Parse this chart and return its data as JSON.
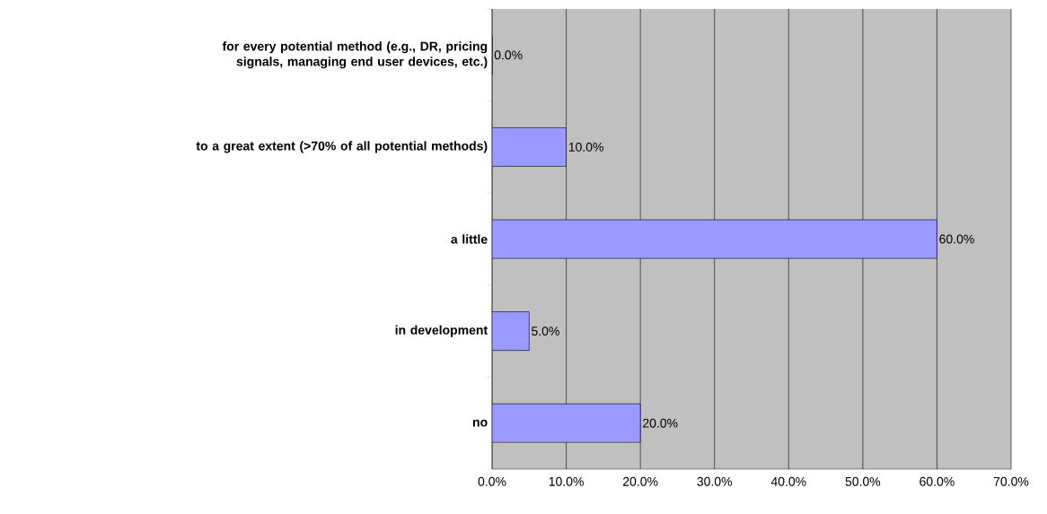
{
  "chart_data": {
    "type": "bar",
    "orientation": "horizontal",
    "categories": [
      "for every potential method (e.g., DR, pricing signals, managing end user devices, etc.)",
      "to a great extent (>70% of all potential methods)",
      "a little",
      "in development",
      "no"
    ],
    "values": [
      0,
      10,
      60,
      5,
      20
    ],
    "value_labels": [
      "0.0%",
      "10.0%",
      "60.0%",
      "5.0%",
      "20.0%"
    ],
    "color": "#9999ff",
    "xlim": [
      0,
      70
    ],
    "xticks": [
      {
        "value": 0,
        "label": "0.0%"
      },
      {
        "value": 10,
        "label": "10.0%"
      },
      {
        "value": 20,
        "label": "20.0%"
      },
      {
        "value": 30,
        "label": "30.0%"
      },
      {
        "value": 40,
        "label": "40.0%"
      },
      {
        "value": 50,
        "label": "50.0%"
      },
      {
        "value": 60,
        "label": "60.0%"
      },
      {
        "value": 70,
        "label": "70.0%"
      }
    ],
    "grid": "x"
  }
}
